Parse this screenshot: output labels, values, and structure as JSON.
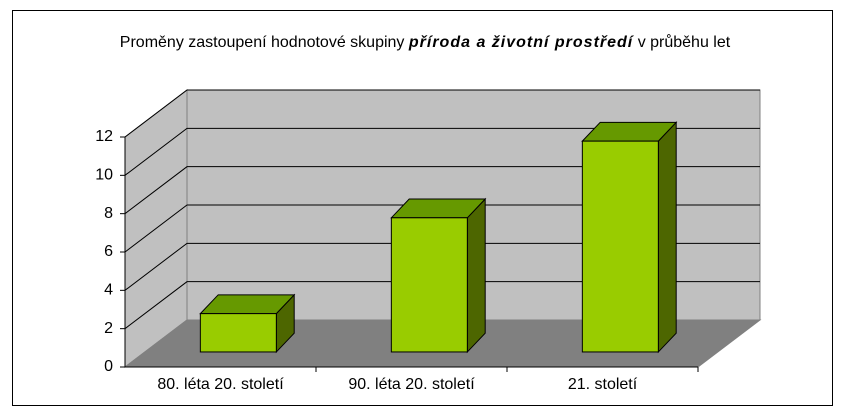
{
  "chart_data": {
    "type": "bar3d",
    "title": [
      "Proměny zastoupení hodnotové skupiny",
      "příroda a životní prostředí",
      "v průběhu let"
    ],
    "categories": [
      "80. léta 20. století",
      "90. léta 20. století",
      "21. století"
    ],
    "values": [
      2,
      7,
      11
    ],
    "color": "#99cc00",
    "ylim": [
      0,
      12
    ],
    "yticks": [
      0,
      2,
      4,
      6,
      8,
      10,
      12
    ],
    "grid": true
  }
}
